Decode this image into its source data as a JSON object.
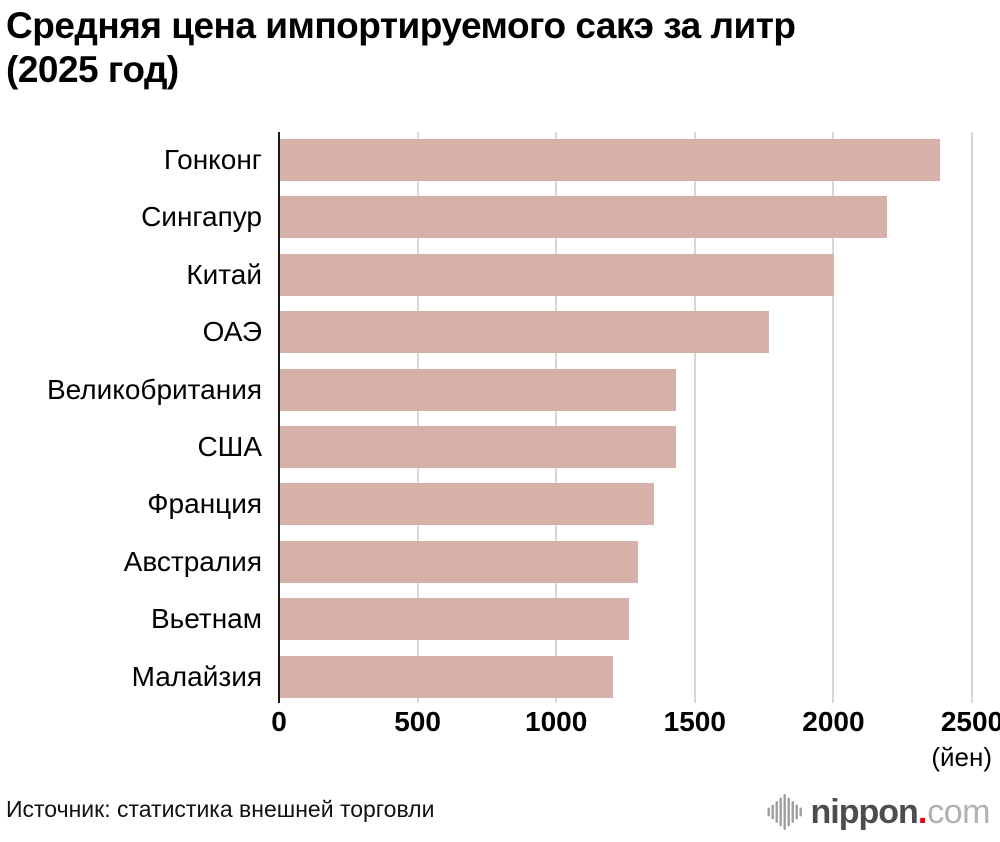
{
  "title": "Средняя цена импортируемого сакэ за литр\n(2025 год)",
  "chart_data": {
    "type": "bar",
    "orientation": "horizontal",
    "title": "Средняя цена импортируемого сакэ за литр (2025 год)",
    "categories": [
      "Гонконг",
      "Сингапур",
      "Китай",
      "ОАЭ",
      "Великобритания",
      "США",
      "Франция",
      "Австралия",
      "Вьетнам",
      "Малайзия"
    ],
    "values": [
      2380,
      2190,
      2000,
      1765,
      1430,
      1430,
      1350,
      1290,
      1260,
      1200
    ],
    "xlabel": "(йен)",
    "ylabel": "",
    "xlim": [
      0,
      2500
    ],
    "xticks": [
      0,
      500,
      1000,
      1500,
      2000,
      2500
    ],
    "unit_label": "(йен)",
    "grid": true,
    "legend": false,
    "bar_color": "#d6b1aa",
    "gridline_color": "#d8d8d8",
    "axis_color": "#1a1a1a"
  },
  "footer": {
    "source": "Источник: статистика внешней торговли",
    "logo": {
      "name": "nippon",
      "dot": ".",
      "tld": "com",
      "name_color": "#4d4d4d",
      "tld_color": "#b1b1b1",
      "dot_color": "#e60012",
      "icon_color": "#9e9e9e"
    }
  }
}
